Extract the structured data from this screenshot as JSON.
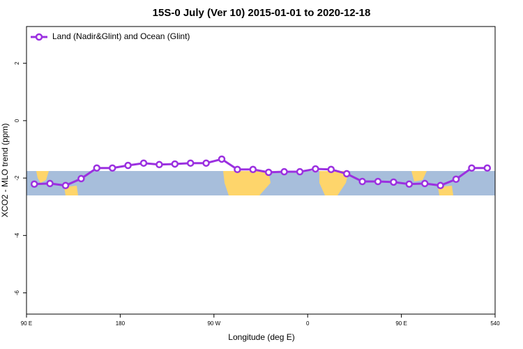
{
  "chart_data": {
    "type": "line",
    "title": "15S-0 July (Ver 10)   2015-01-01 to 2020-12-18",
    "xlabel": "Longitude (deg E)",
    "ylabel": "XCO2 - MLO trend (ppm)",
    "x": [
      97.5,
      112.5,
      127.5,
      142.5,
      157.5,
      172.5,
      187.5,
      202.5,
      217.5,
      232.5,
      247.5,
      262.5,
      277.5,
      292.5,
      307.5,
      322.5,
      337.5,
      352.5,
      367.5,
      382.5,
      397.5,
      412.5,
      427.5,
      442.5,
      457.5,
      472.5,
      487.5,
      502.5,
      517.5,
      532.5
    ],
    "series": [
      {
        "name": "Land (Nadir&Glint) and Ocean (Glint)",
        "color": "#9b30e0",
        "values": [
          -2.21,
          -2.19,
          -2.26,
          -2.02,
          -1.65,
          -1.65,
          -1.56,
          -1.48,
          -1.53,
          -1.51,
          -1.48,
          -1.48,
          -1.34,
          -1.7,
          -1.7,
          -1.8,
          -1.78,
          -1.78,
          -1.68,
          -1.7,
          -1.85,
          -2.12,
          -2.12,
          -2.14,
          -2.21,
          -2.19,
          -2.26,
          -2.04,
          -1.65,
          -1.65
        ]
      }
    ],
    "xlim": [
      90,
      540
    ],
    "xticks": [
      {
        "value": 90,
        "label": "90 E"
      },
      180,
      {
        "value": 270,
        "label": "90 W"
      },
      {
        "value": 360,
        "label": "0"
      },
      {
        "value": 450,
        "label": "90 E"
      },
      540
    ],
    "ylim": [
      -6.74,
      3.28
    ],
    "yticks": [
      -6,
      -4,
      -2,
      0,
      2
    ],
    "legend": "upper left"
  }
}
